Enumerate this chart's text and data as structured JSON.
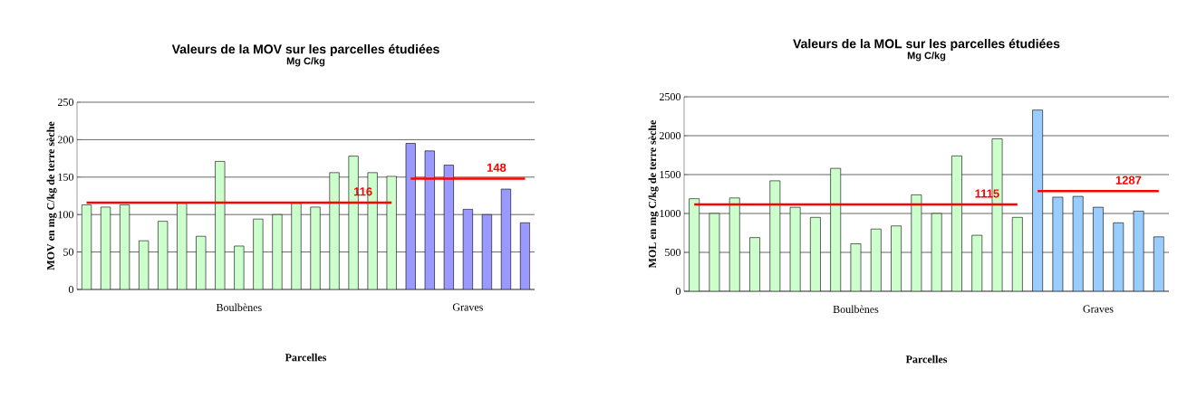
{
  "chart_data": [
    {
      "type": "bar",
      "title": "Valeurs de la MOV sur les parcelles étudiées",
      "subtitle": "Mg C/kg",
      "xlabel": "Parcelles",
      "ylabel": "MOV en mg C/kg de terre sèche",
      "categories": [
        null,
        null,
        null,
        null,
        null,
        null,
        null,
        null,
        "Boulbènes",
        null,
        null,
        null,
        null,
        null,
        null,
        null,
        null,
        null,
        null,
        null,
        "Graves",
        null,
        null,
        null
      ],
      "series": [
        {
          "color": "#ccffcc",
          "values": [
            113,
            110,
            113,
            65,
            91,
            115,
            71,
            171,
            58,
            94,
            100,
            115,
            110,
            156,
            178,
            156,
            151,
            null,
            null,
            null,
            null,
            null,
            null,
            null
          ]
        },
        {
          "color": "#9999ff",
          "values": [
            null,
            null,
            null,
            null,
            null,
            null,
            null,
            null,
            null,
            null,
            null,
            null,
            null,
            null,
            null,
            null,
            null,
            195,
            185,
            166,
            107,
            100,
            134,
            89
          ]
        },
        {
          "type": "line",
          "color": "#ff0000",
          "values": [
            116,
            116,
            116,
            116,
            116,
            116,
            116,
            116,
            116,
            116,
            116,
            116,
            116,
            116,
            116,
            116,
            116,
            null,
            null,
            null,
            null,
            null,
            null,
            null
          ]
        },
        {
          "type": "line",
          "color": "#ff0000",
          "values": [
            null,
            null,
            null,
            null,
            null,
            null,
            null,
            null,
            null,
            null,
            null,
            null,
            null,
            null,
            null,
            null,
            null,
            148,
            148,
            148,
            148,
            148,
            148,
            148
          ]
        }
      ],
      "annotations": [
        {
          "text": "116",
          "y": 116
        },
        {
          "text": "148",
          "y": 148
        }
      ],
      "ylim": [
        0,
        250
      ],
      "yticks": [
        0,
        50,
        100,
        150,
        200,
        250
      ],
      "grid": "y"
    },
    {
      "type": "bar",
      "title": "Valeurs de la MOL sur les parcelles étudiées",
      "subtitle": "Mg C/kg",
      "xlabel": "Parcelles",
      "ylabel": "MOL en mg C/kg de terre sèche",
      "categories": [
        null,
        null,
        null,
        null,
        null,
        null,
        null,
        null,
        "Boulbènes",
        null,
        null,
        null,
        null,
        null,
        null,
        null,
        null,
        null,
        null,
        null,
        "Graves",
        null,
        null,
        null
      ],
      "series": [
        {
          "color": "#ccffcc",
          "values": [
            1190,
            1000,
            1200,
            690,
            1420,
            1080,
            950,
            1580,
            610,
            800,
            840,
            1240,
            1000,
            1740,
            720,
            1960,
            950,
            null,
            null,
            null,
            null,
            null,
            null,
            null
          ]
        },
        {
          "color": "#99ccff",
          "values": [
            null,
            null,
            null,
            null,
            null,
            null,
            null,
            null,
            null,
            null,
            null,
            null,
            null,
            null,
            null,
            null,
            null,
            2330,
            1210,
            1220,
            1080,
            880,
            1030,
            700
          ]
        },
        {
          "type": "line",
          "color": "#ff0000",
          "values": [
            1115,
            1115,
            1115,
            1115,
            1115,
            1115,
            1115,
            1115,
            1115,
            1115,
            1115,
            1115,
            1115,
            1115,
            1115,
            1115,
            1115,
            null,
            null,
            null,
            null,
            null,
            null,
            null
          ]
        },
        {
          "type": "line",
          "color": "#ff0000",
          "values": [
            null,
            null,
            null,
            null,
            null,
            null,
            null,
            null,
            null,
            null,
            null,
            null,
            null,
            null,
            null,
            null,
            null,
            1287,
            1287,
            1287,
            1287,
            1287,
            1287,
            1287
          ]
        }
      ],
      "annotations": [
        {
          "text": "1115",
          "y": 1115
        },
        {
          "text": "1287",
          "y": 1287
        }
      ],
      "ylim": [
        0,
        2500
      ],
      "yticks": [
        0,
        500,
        1000,
        1500,
        2000,
        2500
      ],
      "grid": "y"
    }
  ]
}
